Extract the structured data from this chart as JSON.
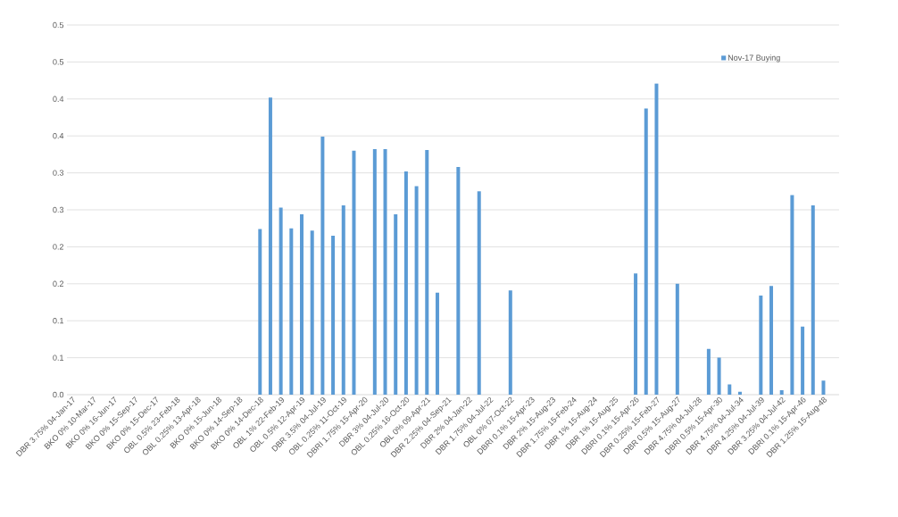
{
  "chart_data": {
    "type": "bar",
    "categories": [
      "DBR 3.75% 04-Jan-17",
      null,
      "BKO 0% 10-Mar-17",
      null,
      "BKO 0% 16-Jun-17",
      null,
      "BKO 0% 15-Sep-17",
      null,
      "BKO 0% 15-Dec-17",
      null,
      "OBL 0.5% 23-Feb-18",
      null,
      "OBL 0.25% 13-Apr-18",
      null,
      "BKO 0% 15-Jun-18",
      null,
      "BKO 0% 14-Sep-18",
      null,
      "BKO 0% 14-Dec-18",
      null,
      "OBL 1% 22-Feb-19",
      null,
      "OBL 0.5% 12-Apr-19",
      null,
      "DBR 3.5% 04-Jul-19",
      null,
      "OBL 0.25% 11-Oct-19",
      null,
      "DBRI 1.75% 15-Apr-20",
      null,
      "DBR 3% 04-Jul-20",
      null,
      "OBL 0.25% 16-Oct-20",
      null,
      "OBL 0% 09-Apr-21",
      null,
      "DBR 2.25% 04-Sep-21",
      null,
      "DBR 2% 04-Jan-22",
      null,
      "DBR 1.75% 04-Jul-22",
      null,
      "OBL 0% 07-Oct-22",
      null,
      "DBRI 0.1% 15-Apr-23",
      null,
      "DBR 2% 15-Aug-23",
      null,
      "DBR 1.75% 15-Feb-24",
      null,
      "DBR 1% 15-Aug-24",
      null,
      "DBR 1% 15-Aug-25",
      null,
      "DBRI 0.1% 15-Apr-26",
      null,
      "DBR 0.25% 15-Feb-27",
      null,
      "DBR 0.5% 15-Aug-27",
      null,
      "DBR 4.75% 04-Jul-28",
      null,
      "DBRI 0.5% 15-Apr-30",
      null,
      "DBR 4.75% 04-Jul-34",
      null,
      "DBR 4.25% 04-Jul-39",
      null,
      "DBR 3.25% 04-Jul-42",
      null,
      "DBRI 0.1% 15-Apr-46",
      null,
      "DBR 1.25% 15-Aug-48",
      null
    ],
    "series": [
      {
        "name": "Nov-17 Buying",
        "color": "#5b9bd5",
        "values": [
          null,
          null,
          null,
          null,
          null,
          null,
          null,
          null,
          null,
          null,
          null,
          null,
          null,
          null,
          null,
          null,
          null,
          null,
          0.224,
          0.402,
          0.253,
          0.225,
          0.244,
          0.222,
          0.349,
          0.215,
          0.256,
          0.33,
          null,
          0.332,
          0.332,
          0.244,
          0.302,
          0.282,
          0.331,
          0.138,
          null,
          0.308,
          null,
          0.275,
          null,
          null,
          0.141,
          null,
          null,
          null,
          null,
          null,
          null,
          null,
          null,
          null,
          null,
          null,
          0.164,
          0.387,
          0.421,
          null,
          0.15,
          null,
          null,
          0.062,
          0.05,
          0.014,
          0.004,
          null,
          0.134,
          0.147,
          0.006,
          0.27,
          0.092,
          0.256,
          0.019,
          null
        ]
      }
    ],
    "ylim": [
      0,
      0.5
    ],
    "yticks": [
      {
        "value": 0,
        "label": "0.0"
      },
      {
        "value": 0.05,
        "label": "0.1"
      },
      {
        "value": 0.1,
        "label": "0.1"
      },
      {
        "value": 0.15,
        "label": "0.2"
      },
      {
        "value": 0.2,
        "label": "0.2"
      },
      {
        "value": 0.25,
        "label": "0.3"
      },
      {
        "value": 0.3,
        "label": "0.3"
      },
      {
        "value": 0.35,
        "label": "0.4"
      },
      {
        "value": 0.4,
        "label": "0.4"
      },
      {
        "value": 0.45,
        "label": "0.5"
      },
      {
        "value": 0.5,
        "label": "0.5"
      }
    ],
    "grid": "y",
    "legend": "top right"
  }
}
